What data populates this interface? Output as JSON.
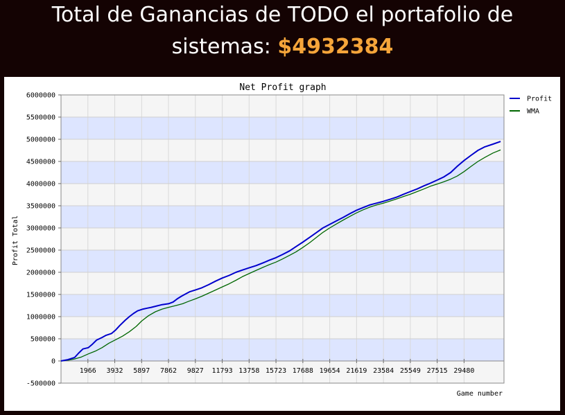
{
  "header": {
    "title_line1": "Total de Ganancias de TODO el portafolio de",
    "title_line2_prefix": "sistemas: ",
    "total_amount": "$4932384"
  },
  "colors": {
    "background": "#140303",
    "amount": "#f5a53a",
    "band_light": "#f5f5f5",
    "band_blue": "#dde5ff",
    "profit_line": "#0000cc",
    "wma_line": "#006600"
  },
  "chart_data": {
    "type": "line",
    "title": "Net Profit graph",
    "xlabel": "Game number",
    "ylabel": "Profit Total",
    "xlim": [
      0,
      32400
    ],
    "ylim": [
      -500000,
      6000000
    ],
    "x_ticks": [
      "1966",
      "3932",
      "5897",
      "7862",
      "9827",
      "11793",
      "13758",
      "15723",
      "17688",
      "19654",
      "21619",
      "23584",
      "25549",
      "27515",
      "29480"
    ],
    "y_ticks": [
      "6000000",
      "5500000",
      "5000000",
      "4500000",
      "4000000",
      "3500000",
      "3000000",
      "2500000",
      "2000000",
      "1500000",
      "1000000",
      "500000",
      "0",
      "-500000"
    ],
    "grid": true,
    "legend_position": "right",
    "series": [
      {
        "name": "Profit",
        "color": "#0000cc",
        "x": [
          0,
          500,
          1000,
          1300,
          1600,
          2000,
          2300,
          2600,
          3000,
          3300,
          3700,
          4000,
          4300,
          4700,
          5000,
          5300,
          5600,
          6000,
          6300,
          6600,
          7000,
          7400,
          7862,
          8200,
          8500,
          8800,
          9100,
          9400,
          9827,
          10300,
          10800,
          11300,
          11793,
          12300,
          12800,
          13258,
          13758,
          14258,
          14758,
          15223,
          15723,
          16200,
          16700,
          17188,
          17688,
          18200,
          18700,
          19154,
          19654,
          20150,
          20650,
          21119,
          21619,
          22100,
          22600,
          23084,
          23584,
          24100,
          24600,
          25049,
          25549,
          26050,
          26550,
          27015,
          27515,
          28000,
          28500,
          28980,
          29480,
          30000,
          30500,
          31000,
          31600,
          32150
        ],
        "values": [
          0,
          30000,
          80000,
          180000,
          270000,
          300000,
          380000,
          470000,
          530000,
          580000,
          620000,
          700000,
          800000,
          920000,
          1000000,
          1070000,
          1130000,
          1170000,
          1190000,
          1210000,
          1240000,
          1270000,
          1290000,
          1330000,
          1400000,
          1460000,
          1510000,
          1560000,
          1600000,
          1650000,
          1720000,
          1800000,
          1870000,
          1930000,
          2000000,
          2050000,
          2100000,
          2150000,
          2210000,
          2270000,
          2330000,
          2400000,
          2480000,
          2580000,
          2680000,
          2790000,
          2900000,
          3000000,
          3080000,
          3160000,
          3240000,
          3320000,
          3400000,
          3460000,
          3520000,
          3560000,
          3600000,
          3650000,
          3700000,
          3760000,
          3820000,
          3880000,
          3950000,
          4010000,
          4080000,
          4150000,
          4250000,
          4390000,
          4520000,
          4640000,
          4750000,
          4830000,
          4890000,
          4950000
        ]
      },
      {
        "name": "WMA",
        "color": "#006600",
        "x": [
          0,
          500,
          1000,
          1500,
          2000,
          2500,
          3000,
          3500,
          4000,
          4500,
          5000,
          5500,
          5897,
          6400,
          6900,
          7400,
          7862,
          8400,
          8900,
          9300,
          9827,
          10300,
          10800,
          11300,
          11793,
          12300,
          12800,
          13258,
          13758,
          14258,
          14758,
          15223,
          15723,
          16200,
          16700,
          17188,
          17688,
          18200,
          18700,
          19154,
          19654,
          20150,
          20650,
          21119,
          21619,
          22100,
          22600,
          23084,
          23584,
          24100,
          24600,
          25049,
          25549,
          26050,
          26550,
          27015,
          27515,
          28000,
          28500,
          28980,
          29480,
          30000,
          30500,
          31000,
          31600,
          32150
        ],
        "values": [
          0,
          15000,
          45000,
          90000,
          160000,
          220000,
          300000,
          400000,
          480000,
          560000,
          660000,
          780000,
          900000,
          1020000,
          1110000,
          1170000,
          1210000,
          1250000,
          1290000,
          1340000,
          1400000,
          1460000,
          1530000,
          1600000,
          1670000,
          1740000,
          1820000,
          1900000,
          1970000,
          2040000,
          2110000,
          2170000,
          2230000,
          2300000,
          2380000,
          2460000,
          2560000,
          2670000,
          2790000,
          2900000,
          3000000,
          3090000,
          3180000,
          3260000,
          3340000,
          3410000,
          3470000,
          3520000,
          3560000,
          3610000,
          3660000,
          3710000,
          3760000,
          3820000,
          3880000,
          3940000,
          3990000,
          4040000,
          4100000,
          4170000,
          4270000,
          4390000,
          4500000,
          4590000,
          4690000,
          4760000
        ]
      }
    ]
  }
}
